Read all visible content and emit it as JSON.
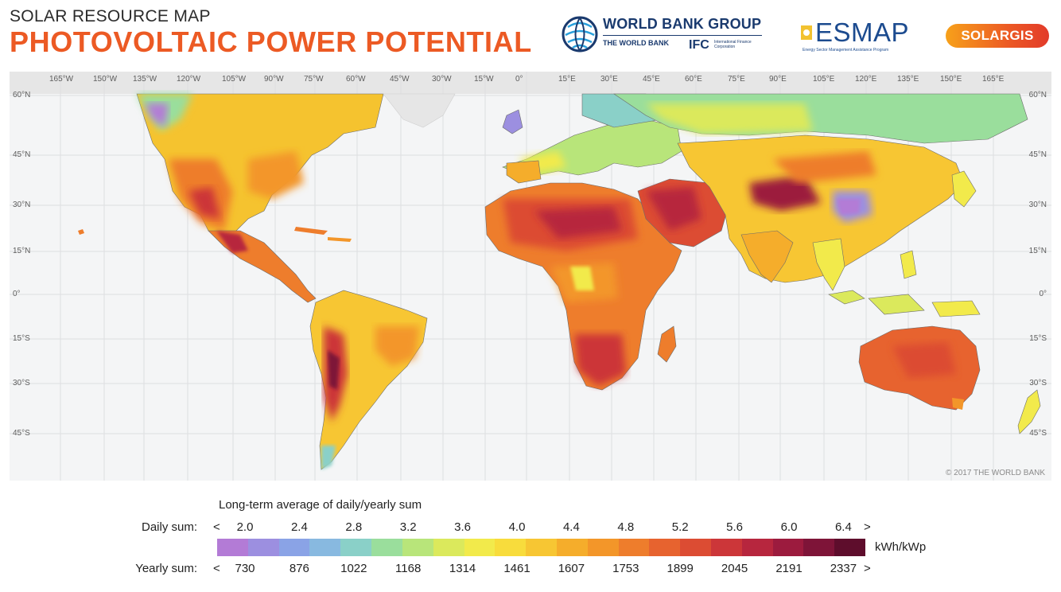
{
  "header": {
    "subtitle": "SOLAR RESOURCE MAP",
    "title": "PHOTOVOLTAIC POWER POTENTIAL"
  },
  "logos": {
    "world_bank": {
      "name": "WORLD BANK GROUP",
      "sub1": "THE WORLD BANK",
      "sub2": "IFC",
      "sub2_desc": "International Finance Corporation"
    },
    "esmap": {
      "name": "ESMAP",
      "desc": "Energy Sector Management Assistance Program"
    },
    "solargis": {
      "name": "SOLARGIS"
    }
  },
  "map": {
    "latitudes": [
      "60°N",
      "45°N",
      "30°N",
      "15°N",
      "0°",
      "15°S",
      "30°S",
      "45°S"
    ],
    "longitudes": [
      "165°W",
      "150°W",
      "135°W",
      "120°W",
      "105°W",
      "90°W",
      "75°W",
      "60°W",
      "45°W",
      "30°W",
      "15°W",
      "0°",
      "15°E",
      "30°E",
      "45°E",
      "60°E",
      "75°E",
      "90°E",
      "105°E",
      "120°E",
      "135°E",
      "150°E",
      "165°E"
    ],
    "copyright": "© 2017 THE WORLD BANK",
    "ocean_color": "#f4f5f6",
    "polar_color": "#e6e6e6"
  },
  "legend": {
    "heading": "Long-term average of daily/yearly sum",
    "daily_label": "Daily sum:",
    "yearly_label": "Yearly sum:",
    "less_symbol": "<",
    "greater_symbol": ">",
    "daily_ticks": [
      "2.0",
      "2.4",
      "2.8",
      "3.2",
      "3.6",
      "4.0",
      "4.4",
      "4.8",
      "5.2",
      "5.6",
      "6.0",
      "6.4"
    ],
    "yearly_ticks": [
      "730",
      "876",
      "1022",
      "1168",
      "1314",
      "1461",
      "1607",
      "1753",
      "1899",
      "2045",
      "2191",
      "2337"
    ],
    "units": "kWh/kWp",
    "colors": [
      "#b37bd6",
      "#9c8fe0",
      "#8aa3e6",
      "#88b9e0",
      "#8ad0c8",
      "#9ade9c",
      "#b8e57a",
      "#dbe95c",
      "#f2ea4b",
      "#f8dc3c",
      "#f7c633",
      "#f5ad2b",
      "#f39629",
      "#ee7d2c",
      "#e7632f",
      "#dc4c33",
      "#cc3639",
      "#b7263e",
      "#9c1b3e",
      "#7e1438",
      "#5e0d2c"
    ]
  }
}
